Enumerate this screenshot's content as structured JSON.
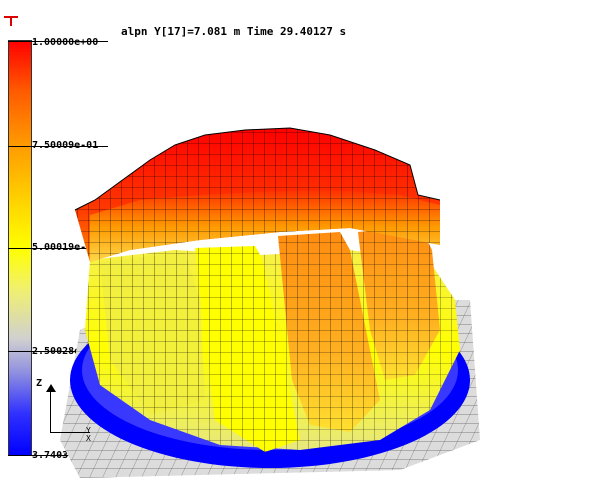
{
  "title": "alpn Y[17]=7.081 m Time 29.40127 s",
  "colorbar": {
    "labels": [
      "1.00000e+00",
      "7.50009e-01",
      "5.00019e-01",
      "2.50028e-01",
      "3.74030e-05"
    ],
    "colors": [
      "#ff0000",
      "#ff9a00",
      "#ffff00",
      "#c0c0c0",
      "#0000ff"
    ]
  },
  "axes": {
    "z": "Z",
    "y": "Y",
    "x": "X"
  }
}
